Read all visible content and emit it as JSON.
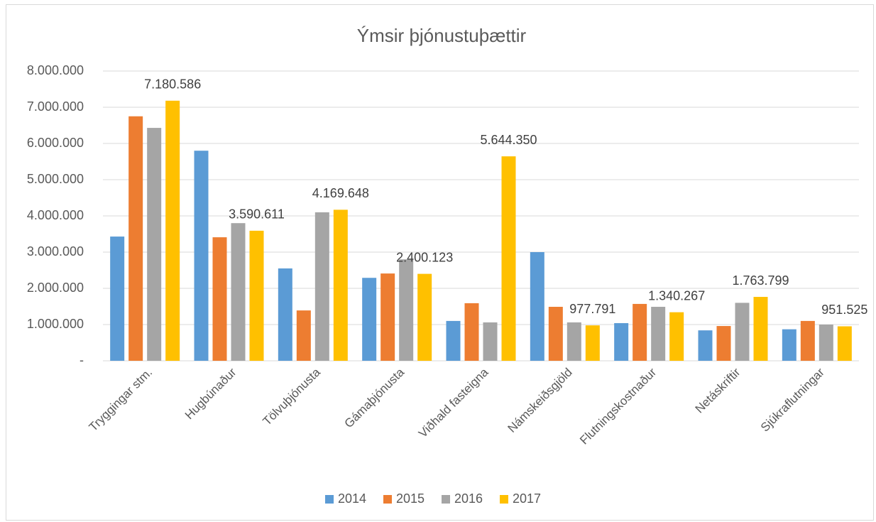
{
  "chart_data": {
    "type": "bar",
    "title": "Ýmsir þjónustuþættir",
    "categories": [
      "Tryggingar stm.",
      "Hugbúnaður",
      "Tölvuþjónusta",
      "Gámaþjónusta",
      "Viðhald fasteigna",
      "Námskeiðsgjöld",
      "Flutningskostnaður",
      "Netáskriftir",
      "Sjúkraflutningar"
    ],
    "series": [
      {
        "name": "2014",
        "color": "#5b9bd5",
        "values": [
          3430000,
          5800000,
          2550000,
          2290000,
          1100000,
          3000000,
          1040000,
          840000,
          870000
        ]
      },
      {
        "name": "2015",
        "color": "#ed7d31",
        "values": [
          6750000,
          3410000,
          1390000,
          2410000,
          1590000,
          1490000,
          1570000,
          960000,
          1100000
        ]
      },
      {
        "name": "2016",
        "color": "#a5a5a5",
        "values": [
          6430000,
          3800000,
          4100000,
          2800000,
          1060000,
          1060000,
          1490000,
          1600000,
          1000000
        ]
      },
      {
        "name": "2017",
        "color": "#ffc000",
        "values": [
          7180586,
          3590611,
          4169648,
          2400123,
          5644350,
          977791,
          1340267,
          1763799,
          951525
        ],
        "value_labels": [
          "7.180.586",
          "3.590.611",
          "4.169.648",
          "2.400.123",
          "5.644.350",
          "977.791",
          "1.340.267",
          "1.763.799",
          "951.525"
        ]
      }
    ],
    "ylim": [
      0,
      8000000
    ],
    "yticks": [
      {
        "value": 0,
        "label": "-"
      },
      {
        "value": 1000000,
        "label": "1.000.000"
      },
      {
        "value": 2000000,
        "label": "2.000.000"
      },
      {
        "value": 3000000,
        "label": "3.000.000"
      },
      {
        "value": 4000000,
        "label": "4.000.000"
      },
      {
        "value": 5000000,
        "label": "5.000.000"
      },
      {
        "value": 6000000,
        "label": "6.000.000"
      },
      {
        "value": 7000000,
        "label": "7.000.000"
      },
      {
        "value": 8000000,
        "label": "8.000.000"
      }
    ],
    "grid": true,
    "legend": "bottom"
  }
}
